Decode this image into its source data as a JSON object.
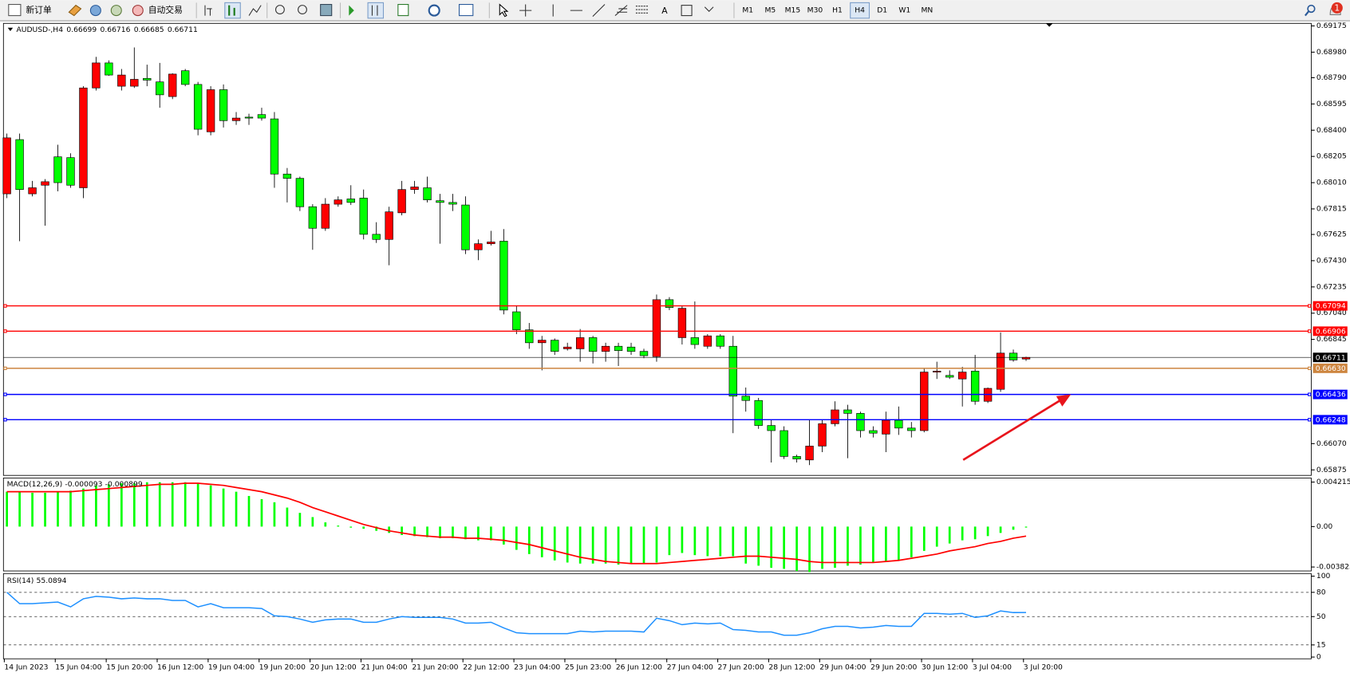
{
  "toolbar": {
    "new_order": "新订单",
    "auto_trading": "自动交易",
    "timeframes": [
      "M1",
      "M5",
      "M15",
      "M30",
      "H1",
      "H4",
      "D1",
      "W1",
      "MN"
    ],
    "active_timeframe": "H4",
    "notifications": 1
  },
  "chart_data": [
    {
      "type": "candlestick",
      "symbol": "AUDUSD-,H4",
      "categories": [
        "14 Jun 2023",
        null,
        null,
        null,
        "15 Jun 04:00",
        null,
        null,
        null,
        "15 Jun 20:00",
        null,
        null,
        null,
        "16 Jun 12:00",
        null,
        null,
        null,
        "19 Jun 04:00",
        null,
        null,
        null,
        "19 Jun 20:00",
        null,
        null,
        null,
        "20 Jun 12:00",
        null,
        null,
        null,
        "21 Jun 04:00",
        null,
        null,
        null,
        "21 Jun 20:00",
        null,
        null,
        null,
        "22 Jun 12:00",
        null,
        null,
        null,
        "23 Jun 04:00",
        null,
        null,
        null,
        "25 Jun 23:00",
        null,
        null,
        null,
        "26 Jun 12:00",
        null,
        null,
        null,
        "27 Jun 04:00",
        null,
        null,
        null,
        "27 Jun 20:00",
        null,
        null,
        null,
        "28 Jun 12:00",
        null,
        null,
        null,
        "29 Jun 04:00",
        null,
        null,
        null,
        "29 Jun 20:00",
        null,
        null,
        null,
        "30 Jun 12:00",
        null,
        null,
        null,
        "3 Jul 04:00",
        null,
        null,
        null,
        "3 Jul 20:00"
      ],
      "ohlc": [
        [
          0.67927,
          0.68375,
          0.67895,
          0.68343
        ],
        [
          0.6833,
          0.68375,
          0.67575,
          0.67959
        ],
        [
          0.67927,
          0.68023,
          0.67908,
          0.67972
        ],
        [
          0.67991,
          0.68036,
          0.6769,
          0.68017
        ],
        [
          0.68202,
          0.68292,
          0.67946,
          0.6801
        ],
        [
          0.68196,
          0.68228,
          0.67972,
          0.67991
        ],
        [
          0.67972,
          0.68727,
          0.67895,
          0.68714
        ],
        [
          0.68714,
          0.68945,
          0.68695,
          0.689
        ],
        [
          0.689,
          0.68919,
          0.68804,
          0.6881
        ],
        [
          0.68727,
          0.68855,
          0.68695,
          0.6881
        ],
        [
          0.68727,
          0.69015,
          0.68714,
          0.68778
        ],
        [
          0.68785,
          0.68887,
          0.68727,
          0.68772
        ],
        [
          0.68759,
          0.689,
          0.68567,
          0.68663
        ],
        [
          0.6865,
          0.68823,
          0.68631,
          0.68817
        ],
        [
          0.68842,
          0.68855,
          0.68727,
          0.6874
        ],
        [
          0.6874,
          0.68759,
          0.68362,
          0.68407
        ],
        [
          0.68388,
          0.68727,
          0.68362,
          0.68701
        ],
        [
          0.68701,
          0.6874,
          0.6842,
          0.68471
        ],
        [
          0.68471,
          0.68535,
          0.68439,
          0.6849
        ],
        [
          0.68497,
          0.68522,
          0.68439,
          0.6849
        ],
        [
          0.68516,
          0.68567,
          0.68471,
          0.6849
        ],
        [
          0.68484,
          0.68535,
          0.67972,
          0.68074
        ],
        [
          0.68074,
          0.68119,
          0.67863,
          0.68042
        ],
        [
          0.68042,
          0.68055,
          0.67799,
          0.67831
        ],
        [
          0.67831,
          0.6785,
          0.67511,
          0.67671
        ],
        [
          0.67671,
          0.67895,
          0.67652,
          0.6785
        ],
        [
          0.6785,
          0.67908,
          0.67831,
          0.67882
        ],
        [
          0.67889,
          0.67991,
          0.67844,
          0.67863
        ],
        [
          0.67895,
          0.67959,
          0.67588,
          0.67626
        ],
        [
          0.67626,
          0.67716,
          0.67562,
          0.67588
        ],
        [
          0.67588,
          0.67831,
          0.67396,
          0.67793
        ],
        [
          0.67786,
          0.68023,
          0.67767,
          0.67959
        ],
        [
          0.67959,
          0.68023,
          0.67927,
          0.67978
        ],
        [
          0.67972,
          0.68055,
          0.67863,
          0.67882
        ],
        [
          0.67876,
          0.67927,
          0.67556,
          0.67863
        ],
        [
          0.67863,
          0.67927,
          0.67799,
          0.6785
        ],
        [
          0.67844,
          0.67908,
          0.67479,
          0.67511
        ],
        [
          0.67511,
          0.67588,
          0.67434,
          0.67556
        ],
        [
          0.67556,
          0.67652,
          0.67543,
          0.67569
        ],
        [
          0.67575,
          0.67665,
          0.67031,
          0.67063
        ],
        [
          0.6705,
          0.67095,
          0.66884,
          0.66916
        ],
        [
          0.66916,
          0.66967,
          0.66775,
          0.6682
        ],
        [
          0.6682,
          0.66871,
          0.66615,
          0.66839
        ],
        [
          0.66839,
          0.66852,
          0.6673,
          0.66756
        ],
        [
          0.66775,
          0.6682,
          0.66762,
          0.66788
        ],
        [
          0.66775,
          0.66922,
          0.66679,
          0.66858
        ],
        [
          0.66858,
          0.66871,
          0.66666,
          0.66756
        ],
        [
          0.66756,
          0.6682,
          0.66679,
          0.66794
        ],
        [
          0.66794,
          0.6682,
          0.66647,
          0.66762
        ],
        [
          0.66788,
          0.6682,
          0.6673,
          0.66756
        ],
        [
          0.66756,
          0.66775,
          0.66705,
          0.66724
        ],
        [
          0.66717,
          0.67178,
          0.66679,
          0.6714
        ],
        [
          0.6714,
          0.67159,
          0.67063,
          0.67082
        ],
        [
          0.66858,
          0.67095,
          0.66807,
          0.67076
        ],
        [
          0.66858,
          0.67127,
          0.66775,
          0.66807
        ],
        [
          0.66794,
          0.66884,
          0.66775,
          0.66871
        ],
        [
          0.66871,
          0.66884,
          0.66775,
          0.66794
        ],
        [
          0.66794,
          0.66871,
          0.66148,
          0.66423
        ],
        [
          0.66423,
          0.66487,
          0.66308,
          0.66391
        ],
        [
          0.66391,
          0.6641,
          0.6618,
          0.66205
        ],
        [
          0.66205,
          0.66244,
          0.6593,
          0.66167
        ],
        [
          0.66167,
          0.66199,
          0.65956,
          0.65975
        ],
        [
          0.65975,
          0.65988,
          0.6593,
          0.65956
        ],
        [
          0.65949,
          0.66244,
          0.65911,
          0.66052
        ],
        [
          0.66052,
          0.66244,
          0.66007,
          0.66218
        ],
        [
          0.66218,
          0.66385,
          0.66199,
          0.66321
        ],
        [
          0.66321,
          0.66359,
          0.65962,
          0.66295
        ],
        [
          0.66295,
          0.66308,
          0.66116,
          0.66167
        ],
        [
          0.66167,
          0.66199,
          0.66116,
          0.66148
        ],
        [
          0.66141,
          0.66308,
          0.66007,
          0.66244
        ],
        [
          0.66244,
          0.66346,
          0.66135,
          0.66186
        ],
        [
          0.66186,
          0.66231,
          0.66116,
          0.66167
        ],
        [
          0.66167,
          0.66628,
          0.66154,
          0.66602
        ],
        [
          0.66602,
          0.66679,
          0.66551,
          0.66609
        ],
        [
          0.66577,
          0.66615,
          0.66551,
          0.66564
        ],
        [
          0.66551,
          0.66641,
          0.66346,
          0.66602
        ],
        [
          0.66609,
          0.6673,
          0.66359,
          0.66385
        ],
        [
          0.66385,
          0.66487,
          0.66372,
          0.66481
        ],
        [
          0.66474,
          0.66897,
          0.66455,
          0.66743
        ],
        [
          0.66743,
          0.66769,
          0.66679,
          0.66692
        ],
        [
          0.66699,
          0.66716,
          0.66685,
          0.66711
        ]
      ],
      "up_color": "#ff0000",
      "down_color": "#00ff00",
      "ylim": [
        0.65834,
        0.69194
      ],
      "yticks": [
        0.69175,
        {
          "value": 0.6898,
          "label": "0.68980"
        },
        {
          "value": 0.6879,
          "label": "0.68790"
        },
        0.68595,
        {
          "value": 0.684,
          "label": "0.68400"
        },
        0.68205,
        {
          "value": 0.6801,
          "label": "0.68010"
        },
        0.67815,
        0.67625,
        {
          "value": 0.6743,
          "label": "0.67430"
        },
        0.67235,
        {
          "value": 0.6704,
          "label": "0.67040"
        },
        0.66845,
        {
          "value": 0.6607,
          "label": "0.66070"
        },
        0.65875
      ],
      "grid": false,
      "levels": [
        {
          "value": 0.67094,
          "color": "#ff0000"
        },
        {
          "value": 0.66906,
          "color": "#ff0000"
        },
        {
          "value": 0.6663,
          "label": "0.66630",
          "color": "#cd853f"
        },
        {
          "value": 0.66436,
          "color": "#0000ff"
        },
        {
          "value": 0.66248,
          "color": "#0000ff"
        }
      ],
      "price_line_color": "#000000"
    },
    {
      "type": "macd",
      "title": "MACD(12,26,9)",
      "histogram": [
        0.0033,
        0.0033,
        0.0032,
        0.0032,
        0.0033,
        0.0034,
        0.0036,
        0.0039,
        0.004,
        0.0041,
        0.0041,
        0.0042,
        0.0042,
        0.0042,
        0.0042,
        0.0041,
        0.0039,
        0.0036,
        0.0033,
        0.0029,
        0.0026,
        0.0023,
        0.0018,
        0.0013,
        0.0009,
        0.0004,
        0.0001,
        -0.0001,
        -0.0002,
        -0.0004,
        -0.0006,
        -0.0008,
        -0.0009,
        -0.001,
        -0.0011,
        -0.0011,
        -0.0012,
        -0.0013,
        -0.0013,
        -0.0017,
        -0.0022,
        -0.0026,
        -0.0029,
        -0.0032,
        -0.0034,
        -0.0035,
        -0.0035,
        -0.0035,
        -0.0036,
        -0.0035,
        -0.0035,
        -0.0034,
        -0.0027,
        -0.0025,
        -0.0027,
        -0.0028,
        -0.0028,
        -0.0028,
        -0.0035,
        -0.0037,
        -0.0039,
        -0.004,
        -0.0042,
        -0.0043,
        -0.004,
        -0.0039,
        -0.0037,
        -0.0036,
        -0.0034,
        -0.0033,
        -0.0032,
        -0.0029,
        -0.0023,
        -0.0019,
        -0.0016,
        -0.0013,
        -0.0012,
        -0.0009,
        -0.0006,
        -0.0003,
        -9.3e-05
      ],
      "signal": [
        0.0033,
        0.0033,
        0.0033,
        0.0033,
        0.0033,
        0.0033,
        0.0034,
        0.0035,
        0.0036,
        0.0037,
        0.0038,
        0.0039,
        0.004,
        0.004,
        0.0041,
        0.0041,
        0.004,
        0.0039,
        0.0037,
        0.0035,
        0.0033,
        0.003,
        0.0027,
        0.0023,
        0.0018,
        0.0014,
        0.001,
        0.0006,
        0.0002,
        -0.0001,
        -0.0004,
        -0.0006,
        -0.0008,
        -0.0009,
        -0.001,
        -0.001,
        -0.0011,
        -0.0011,
        -0.0012,
        -0.0013,
        -0.0015,
        -0.0017,
        -0.002,
        -0.0023,
        -0.0026,
        -0.0029,
        -0.0031,
        -0.0033,
        -0.0034,
        -0.0035,
        -0.0035,
        -0.0035,
        -0.0034,
        -0.0033,
        -0.0032,
        -0.0031,
        -0.003,
        -0.0029,
        -0.0028,
        -0.0028,
        -0.0029,
        -0.003,
        -0.0031,
        -0.0033,
        -0.0034,
        -0.0034,
        -0.0034,
        -0.0034,
        -0.0034,
        -0.0033,
        -0.0032,
        -0.003,
        -0.0028,
        -0.0026,
        -0.0023,
        -0.0021,
        -0.0019,
        -0.0016,
        -0.0014,
        -0.0011,
        -0.000899
      ],
      "histogram_color": "#00ff00",
      "signal_color": "#ff0000",
      "ylim": [
        -0.0042,
        0.0046
      ],
      "yticks": [
        0.004215,
        {
          "value": 0,
          "label": "0.00"
        },
        -0.003825
      ]
    },
    {
      "type": "rsi",
      "title": "RSI(14)",
      "values": [
        80,
        66,
        66,
        67,
        68,
        62,
        72,
        75,
        74,
        72,
        73,
        72,
        72,
        70,
        70,
        62,
        66,
        61,
        61,
        61,
        60,
        51,
        50,
        47,
        43,
        46,
        47,
        47,
        43,
        43,
        47,
        50,
        49,
        49,
        49,
        47,
        42,
        42,
        43,
        36,
        30,
        29,
        29,
        29,
        29,
        32,
        31,
        32,
        32,
        32,
        31,
        48,
        45,
        40,
        42,
        41,
        42,
        34,
        33,
        31,
        31,
        27,
        27,
        30,
        35,
        38,
        38,
        36,
        37,
        39,
        38,
        38,
        54,
        54,
        53,
        54,
        49,
        51,
        57,
        55,
        55.0894
      ],
      "color": "#1e90ff",
      "ylim": [
        0,
        100
      ],
      "yticks": [
        100,
        80,
        50,
        15,
        0
      ],
      "levels": [
        80,
        50,
        15
      ]
    }
  ]
}
